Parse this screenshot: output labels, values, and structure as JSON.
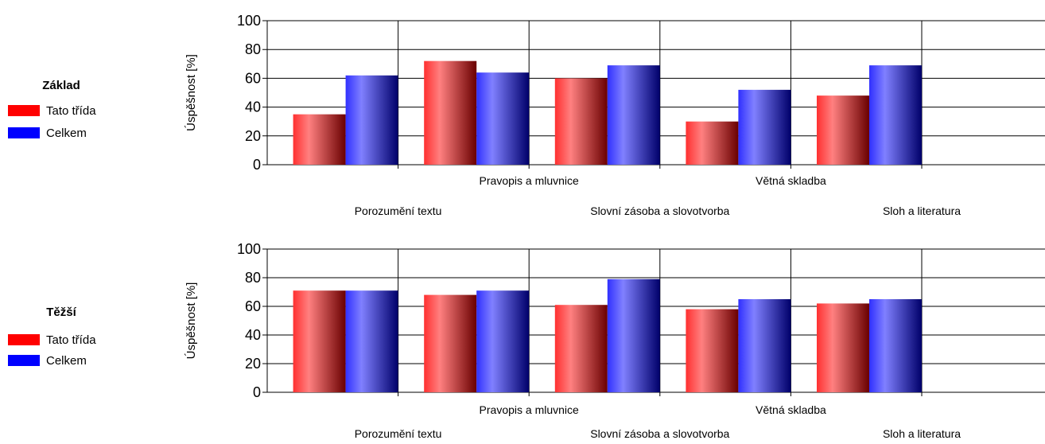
{
  "chart_data": [
    {
      "type": "bar",
      "legend_title": "Základ",
      "legend_placement": "left",
      "ylabel": "Úspěšnost [%]",
      "ylim": [
        0,
        100
      ],
      "yticks": [
        0,
        20,
        40,
        60,
        80,
        100
      ],
      "grid": true,
      "categories": [
        "Porozumění textu",
        "Pravopis a mluvnice",
        "Slovní zásoba a slovotvorba",
        "Větná skladba",
        "Sloh a literatura"
      ],
      "series": [
        {
          "name": "Tato třída",
          "color": "#ff0000",
          "values": [
            35,
            72,
            60,
            30,
            48
          ]
        },
        {
          "name": "Celkem",
          "color": "#0000ff",
          "values": [
            62,
            64,
            69,
            52,
            69
          ]
        }
      ]
    },
    {
      "type": "bar",
      "legend_title": "Těžší",
      "legend_placement": "left",
      "ylabel": "Úspěšnost [%]",
      "ylim": [
        0,
        100
      ],
      "yticks": [
        0,
        20,
        40,
        60,
        80,
        100
      ],
      "grid": true,
      "categories": [
        "Porozumění textu",
        "Pravopis a mluvnice",
        "Slovní zásoba a slovotvorba",
        "Větná skladba",
        "Sloh a literatura"
      ],
      "series": [
        {
          "name": "Tato třída",
          "color": "#ff0000",
          "values": [
            71,
            68,
            61,
            58,
            62
          ]
        },
        {
          "name": "Celkem",
          "color": "#0000ff",
          "values": [
            71,
            71,
            79,
            65,
            65
          ]
        }
      ]
    }
  ]
}
